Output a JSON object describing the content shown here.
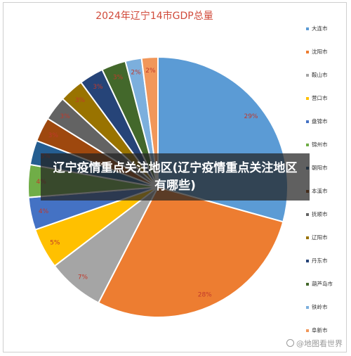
{
  "chart_data": {
    "type": "pie",
    "title": "2024年辽宁14市GDP总量",
    "legend_position": "right",
    "categories": [
      "大连市",
      "沈阳市",
      "鞍山市",
      "营口市",
      "盘锦市",
      "锦州市",
      "朝阳市",
      "本溪市",
      "抚顺市",
      "辽阳市",
      "丹东市",
      "葫芦岛市",
      "铁岭市",
      "阜新市"
    ],
    "values": [
      29,
      28,
      7,
      5,
      4,
      4,
      3,
      3,
      3,
      3,
      3,
      3,
      2,
      2
    ],
    "value_labels": [
      "29%",
      "28%",
      "7%",
      "5%",
      "4%",
      "4%",
      "3%",
      "3%",
      "3%",
      "3%",
      "3%",
      "3%",
      "2%",
      "2%"
    ],
    "colors": [
      "#5b9bd5",
      "#ed7d31",
      "#a5a5a5",
      "#ffc000",
      "#4472c4",
      "#70ad47",
      "#255e91",
      "#9e480e",
      "#636363",
      "#997300",
      "#264478",
      "#43682b",
      "#7cafdd",
      "#f1975a"
    ]
  },
  "overlay": {
    "headline": "辽宁疫情重点关注地区(辽宁疫情重点关注地区有哪些)"
  },
  "watermark": {
    "text": "@地图看世界"
  }
}
